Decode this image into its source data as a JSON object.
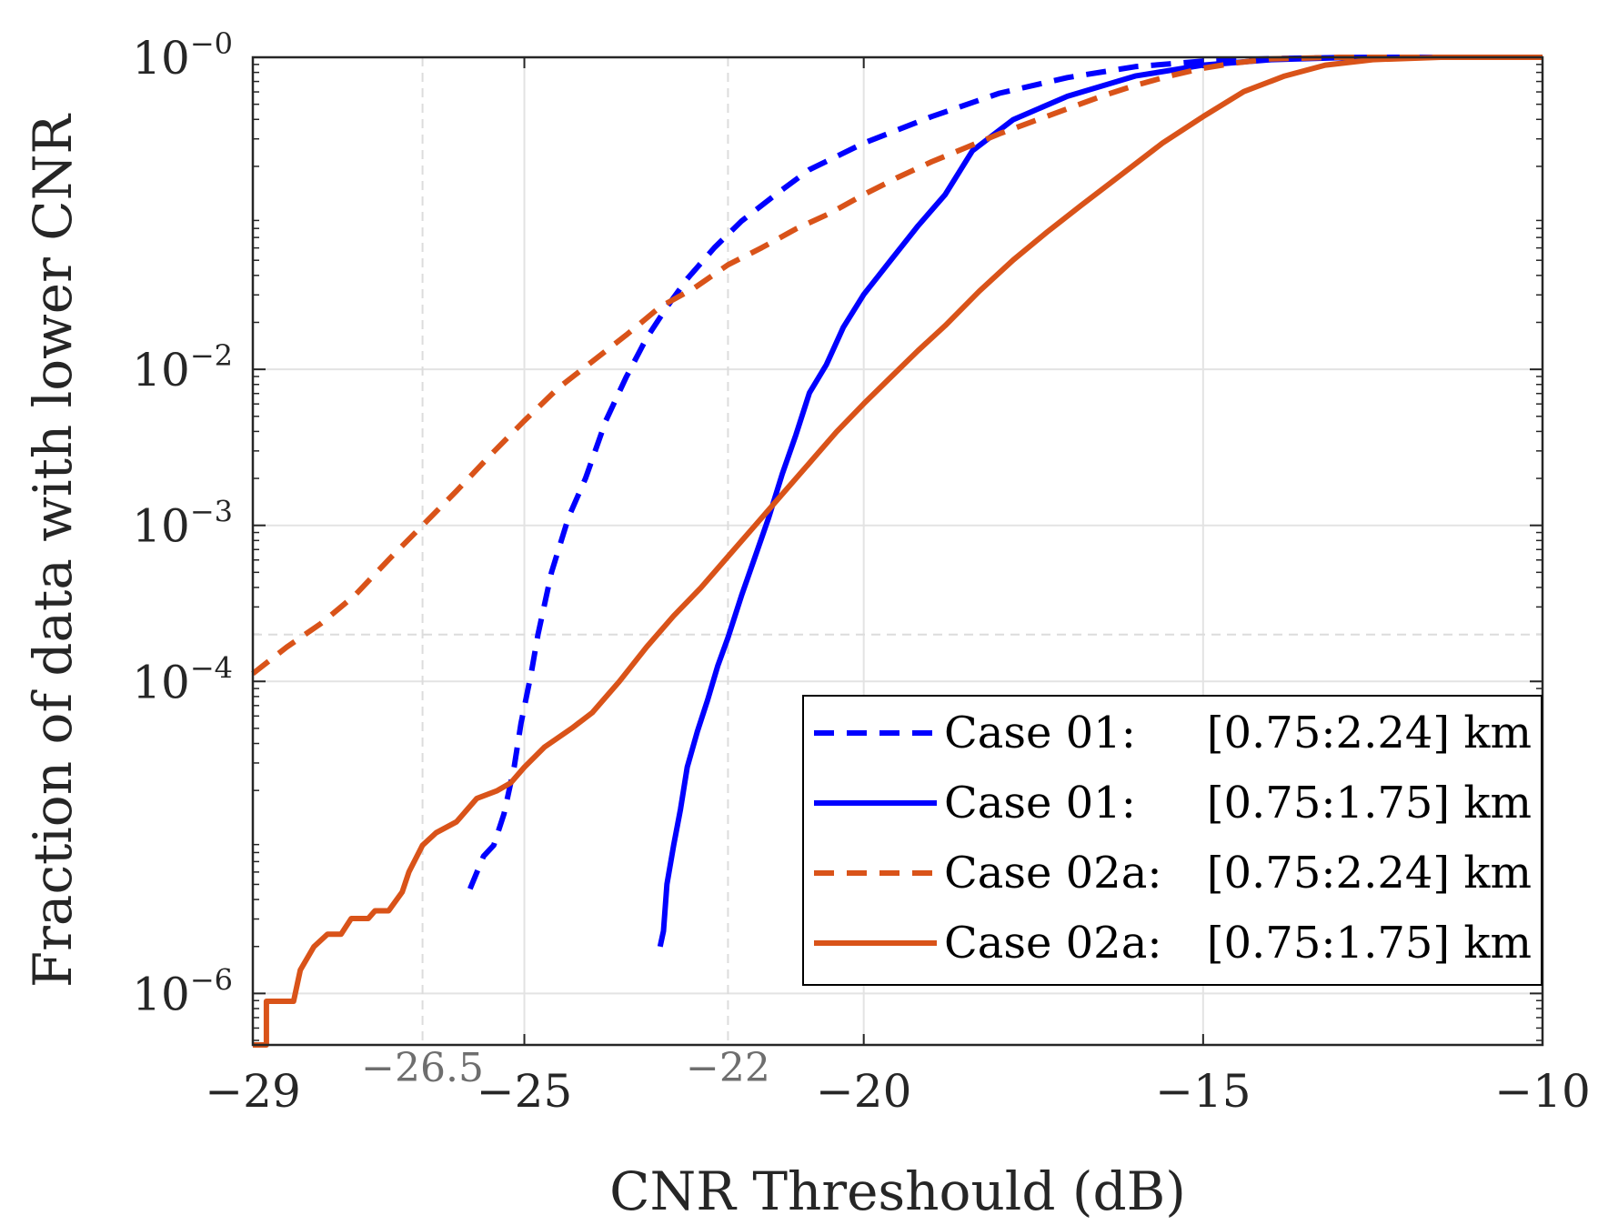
{
  "chart_data": {
    "type": "line",
    "xlabel": "CNR Threshould (dB)",
    "ylabel": "Fraction of data with lower CNR",
    "xlim": [
      -29,
      -10
    ],
    "ylog_decades": [
      -6.33,
      0
    ],
    "grid": true,
    "x_ticks": [
      {
        "value": -29,
        "label": "−29"
      },
      {
        "value": -25,
        "label": "−25"
      },
      {
        "value": -20,
        "label": "−20"
      },
      {
        "value": -15,
        "label": "−15"
      },
      {
        "value": -10,
        "label": "−10"
      }
    ],
    "y_ticks": [
      {
        "exponent": 0,
        "base": "10",
        "sup": "−0"
      },
      {
        "exponent": -2,
        "base": "10",
        "sup": "−2"
      },
      {
        "exponent": -3,
        "base": "10",
        "sup": "−3"
      },
      {
        "exponent": -4,
        "base": "10",
        "sup": "−4"
      },
      {
        "exponent": -6,
        "base": "10",
        "sup": "−6"
      }
    ],
    "reference_lines": {
      "vertical": [
        {
          "value": -26.5,
          "label": "−26.5"
        },
        {
          "value": -22,
          "label": "−22"
        }
      ],
      "horizontal_exponent": [
        -3.7
      ]
    },
    "legend_position": "bottom-right",
    "series": [
      {
        "name": "Case 01:",
        "range": "[0.75:2.24] km",
        "color": "#0000ff",
        "style": "dashed",
        "points": [
          [
            -25.8,
            -5.33
          ],
          [
            -25.6,
            -5.12
          ],
          [
            -25.45,
            -5.05
          ],
          [
            -25.3,
            -4.85
          ],
          [
            -25.15,
            -4.55
          ],
          [
            -25.05,
            -4.27
          ],
          [
            -24.9,
            -3.95
          ],
          [
            -24.8,
            -3.7
          ],
          [
            -24.6,
            -3.3
          ],
          [
            -24.35,
            -2.95
          ],
          [
            -24.1,
            -2.7
          ],
          [
            -23.8,
            -2.33
          ],
          [
            -23.5,
            -2.05
          ],
          [
            -23.2,
            -1.8
          ],
          [
            -22.9,
            -1.6
          ],
          [
            -22.6,
            -1.42
          ],
          [
            -22.2,
            -1.22
          ],
          [
            -21.8,
            -1.05
          ],
          [
            -21.3,
            -0.88
          ],
          [
            -20.8,
            -0.72
          ],
          [
            -20,
            -0.55
          ],
          [
            -19,
            -0.38
          ],
          [
            -18,
            -0.23
          ],
          [
            -17,
            -0.13
          ],
          [
            -16,
            -0.06
          ],
          [
            -15,
            -0.025
          ],
          [
            -14,
            -0.008
          ],
          [
            -13,
            -0.002
          ],
          [
            -12,
            0
          ],
          [
            -10,
            0
          ]
        ]
      },
      {
        "name": "Case 01:",
        "range": "[0.75:1.75] km",
        "color": "#0000ff",
        "style": "solid",
        "points": [
          [
            -23.0,
            -5.7
          ],
          [
            -22.95,
            -5.6
          ],
          [
            -22.9,
            -5.3
          ],
          [
            -22.8,
            -5.05
          ],
          [
            -22.7,
            -4.82
          ],
          [
            -22.6,
            -4.55
          ],
          [
            -22.45,
            -4.32
          ],
          [
            -22.3,
            -4.12
          ],
          [
            -22.15,
            -3.9
          ],
          [
            -22,
            -3.72
          ],
          [
            -21.8,
            -3.45
          ],
          [
            -21.6,
            -3.2
          ],
          [
            -21.4,
            -2.95
          ],
          [
            -21.2,
            -2.67
          ],
          [
            -21.0,
            -2.42
          ],
          [
            -20.8,
            -2.15
          ],
          [
            -20.55,
            -1.97
          ],
          [
            -20.3,
            -1.73
          ],
          [
            -20.0,
            -1.52
          ],
          [
            -19.6,
            -1.3
          ],
          [
            -19.2,
            -1.08
          ],
          [
            -18.8,
            -0.88
          ],
          [
            -18.4,
            -0.6
          ],
          [
            -17.8,
            -0.4
          ],
          [
            -17,
            -0.25
          ],
          [
            -16,
            -0.12
          ],
          [
            -15,
            -0.05
          ],
          [
            -14,
            -0.015
          ],
          [
            -13,
            -0.003
          ],
          [
            -12,
            0
          ],
          [
            -10,
            0
          ]
        ]
      },
      {
        "name": "Case 02a:",
        "range": "[0.75:2.24] km",
        "color": "#d95319",
        "style": "dashed",
        "points": [
          [
            -29,
            -3.95
          ],
          [
            -28.5,
            -3.78
          ],
          [
            -28,
            -3.63
          ],
          [
            -27.5,
            -3.45
          ],
          [
            -27,
            -3.22
          ],
          [
            -26.5,
            -3.0
          ],
          [
            -26,
            -2.78
          ],
          [
            -25.5,
            -2.55
          ],
          [
            -25,
            -2.33
          ],
          [
            -24.5,
            -2.12
          ],
          [
            -24,
            -1.95
          ],
          [
            -23.5,
            -1.78
          ],
          [
            -23,
            -1.6
          ],
          [
            -22.5,
            -1.48
          ],
          [
            -22,
            -1.33
          ],
          [
            -21.5,
            -1.22
          ],
          [
            -21,
            -1.1
          ],
          [
            -20.5,
            -1.0
          ],
          [
            -20,
            -0.88
          ],
          [
            -19.5,
            -0.77
          ],
          [
            -19,
            -0.67
          ],
          [
            -18.5,
            -0.58
          ],
          [
            -18,
            -0.49
          ],
          [
            -17.5,
            -0.41
          ],
          [
            -17,
            -0.33
          ],
          [
            -16.5,
            -0.25
          ],
          [
            -16,
            -0.18
          ],
          [
            -15.5,
            -0.12
          ],
          [
            -15,
            -0.07
          ],
          [
            -14.5,
            -0.035
          ],
          [
            -14,
            -0.01
          ],
          [
            -13,
            0
          ],
          [
            -10,
            0
          ]
        ]
      },
      {
        "name": "Case 02a:",
        "range": "[0.75:1.75] km",
        "color": "#d95319",
        "style": "solid",
        "points": [
          [
            -29,
            -6.33
          ],
          [
            -28.8,
            -6.33
          ],
          [
            -28.8,
            -6.05
          ],
          [
            -28.4,
            -6.05
          ],
          [
            -28.3,
            -5.85
          ],
          [
            -28.1,
            -5.7
          ],
          [
            -27.9,
            -5.62
          ],
          [
            -27.7,
            -5.62
          ],
          [
            -27.55,
            -5.52
          ],
          [
            -27.3,
            -5.52
          ],
          [
            -27.2,
            -5.47
          ],
          [
            -27.0,
            -5.47
          ],
          [
            -26.8,
            -5.35
          ],
          [
            -26.7,
            -5.22
          ],
          [
            -26.5,
            -5.05
          ],
          [
            -26.3,
            -4.97
          ],
          [
            -26.0,
            -4.9
          ],
          [
            -25.7,
            -4.75
          ],
          [
            -25.4,
            -4.7
          ],
          [
            -25.2,
            -4.65
          ],
          [
            -25.0,
            -4.55
          ],
          [
            -24.7,
            -4.42
          ],
          [
            -24.3,
            -4.3
          ],
          [
            -24.0,
            -4.2
          ],
          [
            -23.6,
            -4.0
          ],
          [
            -23.2,
            -3.78
          ],
          [
            -22.8,
            -3.58
          ],
          [
            -22.4,
            -3.4
          ],
          [
            -22.0,
            -3.2
          ],
          [
            -21.6,
            -3.0
          ],
          [
            -21.2,
            -2.8
          ],
          [
            -20.8,
            -2.6
          ],
          [
            -20.4,
            -2.4
          ],
          [
            -20.0,
            -2.22
          ],
          [
            -19.6,
            -2.05
          ],
          [
            -19.2,
            -1.88
          ],
          [
            -18.8,
            -1.72
          ],
          [
            -18.3,
            -1.5
          ],
          [
            -17.8,
            -1.3
          ],
          [
            -17.3,
            -1.12
          ],
          [
            -16.8,
            -0.95
          ],
          [
            -16.2,
            -0.75
          ],
          [
            -15.6,
            -0.55
          ],
          [
            -15.0,
            -0.38
          ],
          [
            -14.4,
            -0.22
          ],
          [
            -13.8,
            -0.12
          ],
          [
            -13.2,
            -0.05
          ],
          [
            -12.5,
            -0.015
          ],
          [
            -11.5,
            0
          ],
          [
            -10,
            0
          ]
        ]
      }
    ]
  }
}
